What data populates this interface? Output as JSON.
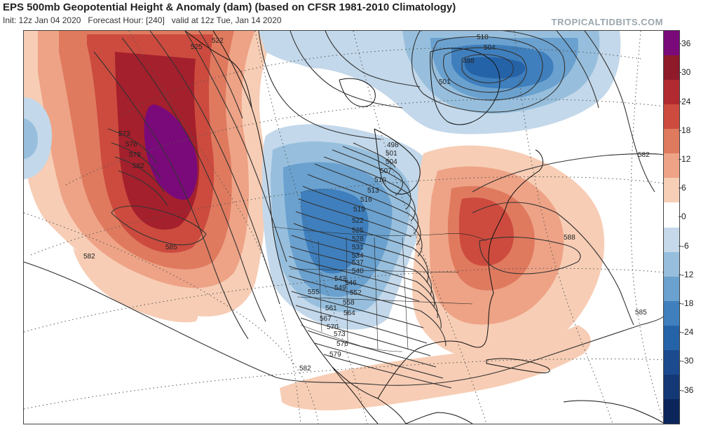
{
  "header": {
    "title": "EPS 500mb Geopotential Height & Anomaly (dam) (based on CFSR 1981-2010 Climatology)",
    "subtitle": "Init: 12z Jan 04 2020   Forecast Hour: [240]   valid at 12z Tue, Jan 14 2020",
    "brand": "TROPICALTIDBITS.COM"
  },
  "colorbar": {
    "ticks": [
      "36",
      "30",
      "24",
      "18",
      "12",
      "6",
      "0",
      "-6",
      "-12",
      "-18",
      "-24",
      "-30",
      "-36"
    ],
    "colors": [
      "#7a0a7a",
      "#8e1a2a",
      "#b12a30",
      "#cc4b3e",
      "#df7a5f",
      "#eea386",
      "#f6cfb6",
      "#ffffff",
      "#c5d9ea",
      "#97bfdd",
      "#6aa1cf",
      "#3f7fbd",
      "#2563a8",
      "#1b4a8f",
      "#143876",
      "#0c255b"
    ]
  },
  "map": {
    "contour_labels": [
      "525",
      "522",
      "510",
      "504",
      "498",
      "501",
      "498",
      "501",
      "504",
      "507",
      "510",
      "513",
      "516",
      "519",
      "522",
      "525",
      "528",
      "531",
      "534",
      "537",
      "540",
      "543",
      "546",
      "549",
      "552",
      "555",
      "558",
      "561",
      "564",
      "567",
      "570",
      "573",
      "576",
      "579",
      "582",
      "582",
      "582",
      "585",
      "585",
      "588",
      "585",
      "573",
      "576",
      "579",
      "582"
    ],
    "colors": {
      "purple": "#7a0a7a",
      "dark_red": "#a4202c",
      "red": "#cc4b3e",
      "salmon": "#e58a6c",
      "light_salmon": "#f7cdb5",
      "light_blue": "#c3d8ea",
      "mid_blue": "#7fb0d6",
      "blue": "#3f7fbd",
      "dark_blue": "#2563a8",
      "contour": "#333333"
    }
  }
}
